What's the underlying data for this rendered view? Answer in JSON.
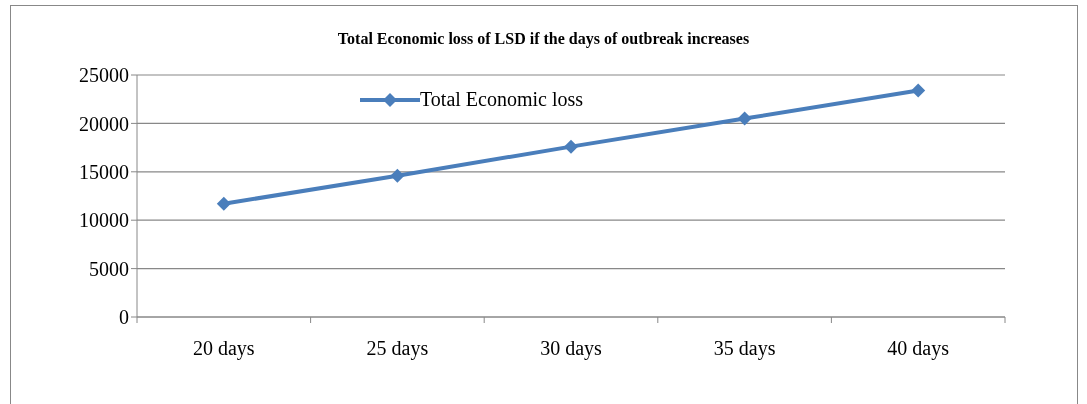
{
  "chart_data": {
    "type": "line",
    "title": "Total Economic loss of LSD if the days of outbreak increases",
    "categories": [
      "20 days",
      "25 days",
      "30 days",
      "35 days",
      "40 days"
    ],
    "series": [
      {
        "name": "Total Economic loss",
        "color": "#4a7ebb",
        "values": [
          11700,
          14600,
          17600,
          20500,
          23400
        ]
      }
    ],
    "ylim": [
      0,
      25000
    ],
    "yticks": [
      0,
      5000,
      10000,
      15000,
      20000,
      25000
    ],
    "grid": "y",
    "legend": "top",
    "marker": "diamond"
  }
}
